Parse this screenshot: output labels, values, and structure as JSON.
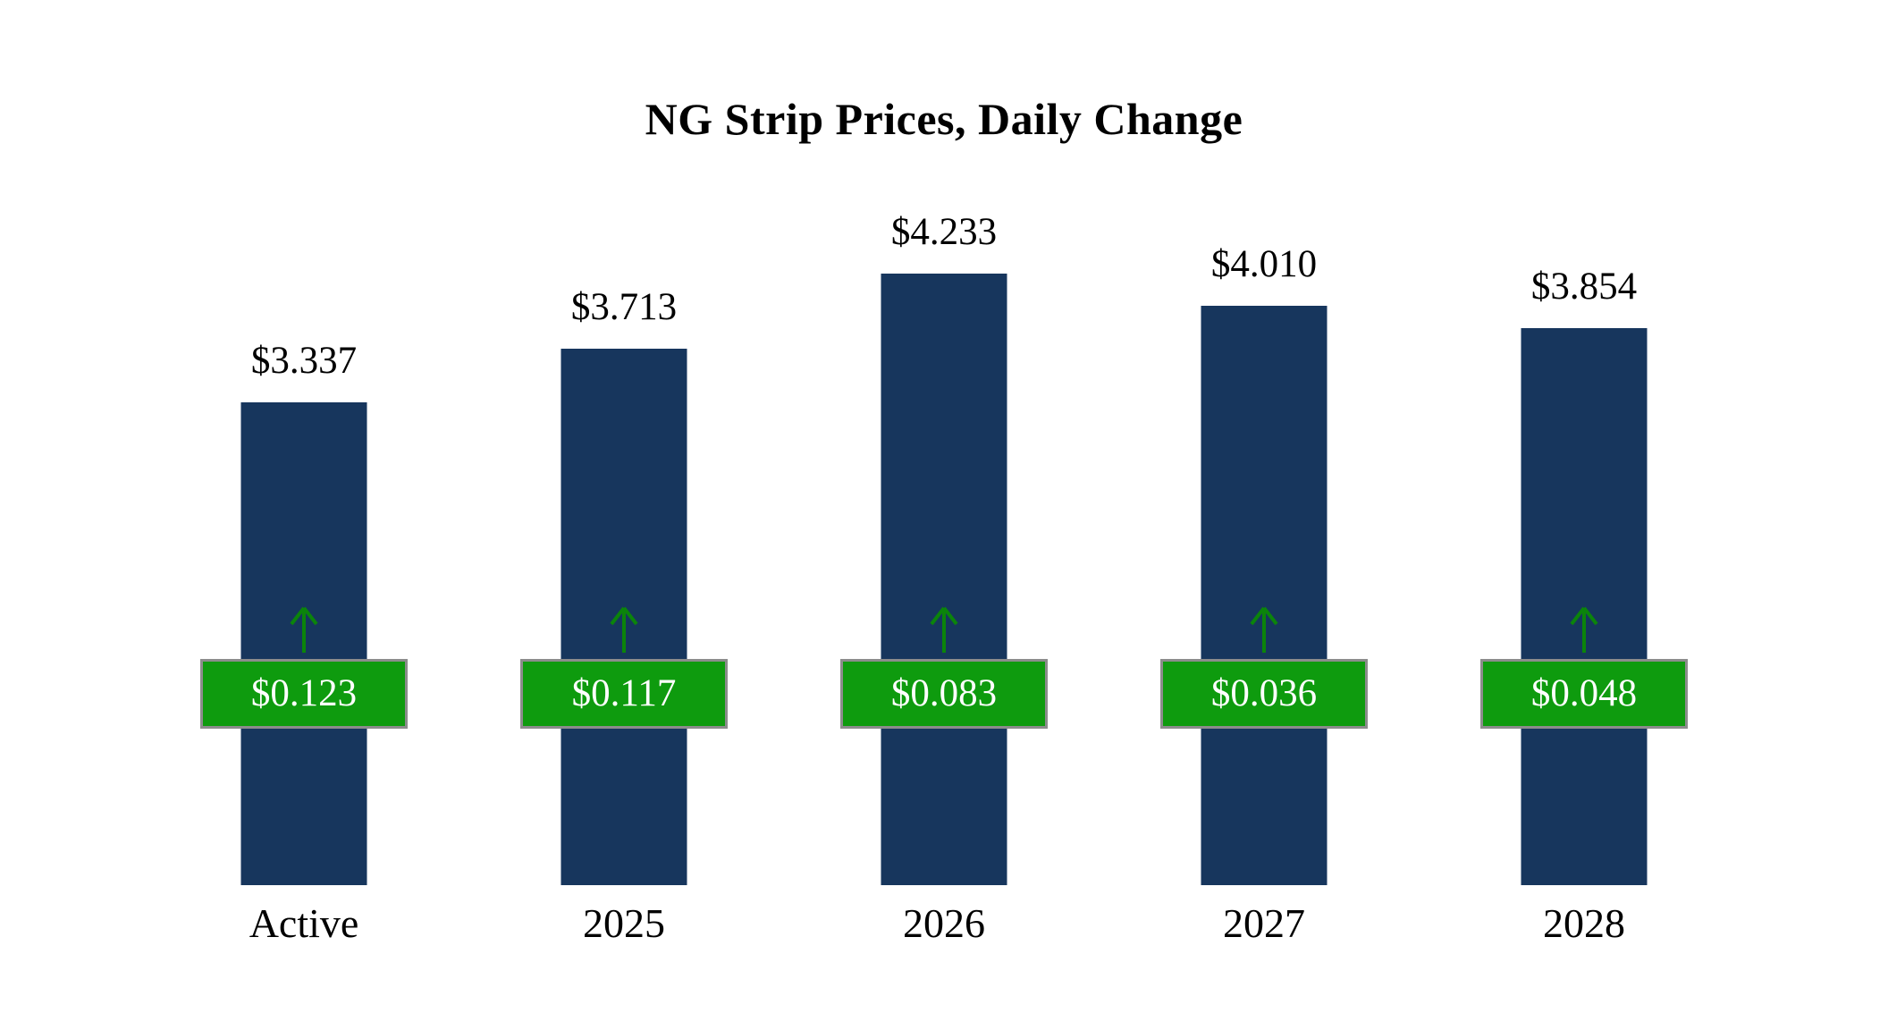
{
  "title": "NG Strip Prices, Daily Change",
  "colors": {
    "background": "#FFFFFF",
    "bar": "#17365D",
    "badge": "#0E9B0E",
    "badge_border": "#8C8C8C",
    "badge_text": "#FFFFFF",
    "arrow": "#0B840B",
    "text": "#000000"
  },
  "chart_data": {
    "type": "bar",
    "title": "NG Strip Prices, Daily Change",
    "categories": [
      "Active",
      "2025",
      "2026",
      "2027",
      "2028"
    ],
    "series": [
      {
        "name": "Strip Price",
        "values": [
          3.337,
          3.713,
          4.233,
          4.01,
          3.854
        ],
        "labels": [
          "$3.337",
          "$3.713",
          "$4.233",
          "$4.010",
          "$3.854"
        ]
      },
      {
        "name": "Daily Change",
        "values": [
          0.123,
          0.117,
          0.083,
          0.036,
          0.048
        ],
        "labels": [
          "$0.123",
          "$0.117",
          "$0.083",
          "$0.036",
          "$0.048"
        ]
      }
    ],
    "xlabel": "",
    "ylabel": "",
    "ylim": [
      0,
      4.5
    ],
    "grid": false,
    "legend": false,
    "annotations": "green up arrow and green badge with daily change centered on each bar"
  }
}
